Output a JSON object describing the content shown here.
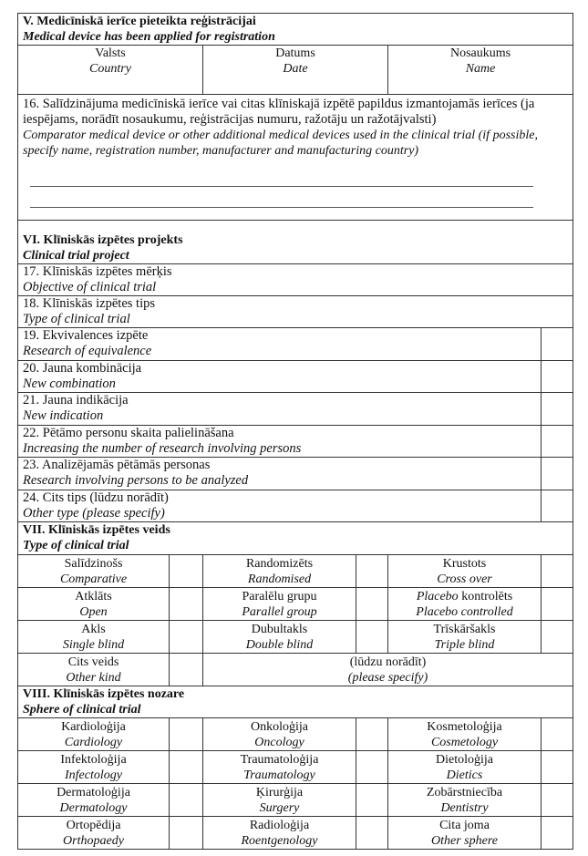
{
  "section5": {
    "title_lv": "V. Medicīniskā ierīce pieteikta reģistrācijai",
    "title_en": "Medical device has been applied for registration",
    "columns": [
      {
        "lv": "Valsts",
        "en": "Country"
      },
      {
        "lv": "Datums",
        "en": "Date"
      },
      {
        "lv": "Nosaukums",
        "en": "Name"
      }
    ],
    "item16": {
      "lv": "16. Salīdzinājuma medicīniskā ierīce vai citas klīniskajā izpētē papildus izmantojamās ierīces (ja iespējams, norādīt nosaukumu, reģistrācijas numuru, ražotāju un ražotājvalsti)",
      "en": "Comparator medical device or other additional medical devices used in the clinical trial (if possible, specify name, registration number, manufacturer and manufacturing country)"
    }
  },
  "section6": {
    "title_lv": "VI. Klīniskās izpētes projekts",
    "title_en": "Clinical trial project",
    "full_items": [
      {
        "lv": "17. Klīniskās izpētes mērķis",
        "en": "Objective of clinical trial"
      },
      {
        "lv": "18. Klīniskās izpētes tips",
        "en": "Type of clinical trial"
      }
    ],
    "check_items": [
      {
        "lv": "19. Ekvivalences izpēte",
        "en": "Research of equivalence"
      },
      {
        "lv": "20. Jauna kombinācija",
        "en": "New combination"
      },
      {
        "lv": "21. Jauna indikācija",
        "en": "New indication"
      },
      {
        "lv": "22. Pētāmo personu skaita palielināšana",
        "en": "Increasing the number of research involving persons"
      },
      {
        "lv": "23. Analizējamās pētāmās personas",
        "en": "Research involving  persons to be analyzed"
      },
      {
        "lv": "24. Cits tips (lūdzu norādīt)",
        "en": "Other type (please specify)"
      }
    ]
  },
  "section7": {
    "title_lv": "VII. Klīniskās izpētes veids",
    "title_en": "Type of clinical trial",
    "rows": [
      [
        {
          "lv": "Salīdzinošs",
          "en": "Comparative"
        },
        {
          "lv": "Randomizēts",
          "en": "Randomised"
        },
        {
          "lv": "Krustots",
          "en": "Cross over"
        }
      ],
      [
        {
          "lv": "Atklāts",
          "en": "Open"
        },
        {
          "lv": "Paralēlu grupu",
          "en": "Parallel group"
        },
        {
          "lv_italic": "Placebo",
          "lv": " kontrolēts",
          "en": "Placebo controlled"
        }
      ],
      [
        {
          "lv": "Akls",
          "en": "Single blind"
        },
        {
          "lv": "Dubultakls",
          "en": "Double blind"
        },
        {
          "lv": "Trīskāršakls",
          "en": "Triple blind"
        }
      ]
    ],
    "other": {
      "lv": "Cits veids",
      "en": "Other kind",
      "specify_lv": "(lūdzu norādīt)",
      "specify_en": "(please specify)"
    }
  },
  "section8": {
    "title_lv": "VIII. Klīniskās izpētes nozare",
    "title_en": "Sphere of clinical trial",
    "rows": [
      [
        {
          "lv": "Kardioloģija",
          "en": "Cardiology"
        },
        {
          "lv": "Onkoloģija",
          "en": "Oncology"
        },
        {
          "lv": "Kosmetoloģija",
          "en": "Cosmetology"
        }
      ],
      [
        {
          "lv": "Infektoloģija",
          "en": "Infectology"
        },
        {
          "lv": "Traumatoloģija",
          "en": "Traumatology"
        },
        {
          "lv": "Dietoloģija",
          "en": "Dietics"
        }
      ],
      [
        {
          "lv": "Dermatoloģija",
          "en": "Dermatology"
        },
        {
          "lv": "Ķirurģija",
          "en": "Surgery"
        },
        {
          "lv": "Zobārstniecība",
          "en": "Dentistry"
        }
      ],
      [
        {
          "lv": "Ortopēdija",
          "en": "Orthopaedy"
        },
        {
          "lv": "Radioloģija",
          "en": "Roentgenology"
        },
        {
          "lv": "Cita joma",
          "en": "Other sphere"
        }
      ]
    ]
  }
}
